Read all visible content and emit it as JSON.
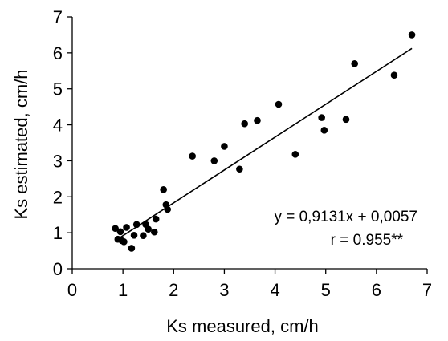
{
  "chart_data": {
    "type": "scatter",
    "title": "",
    "xlabel": "Ks measured, cm/h",
    "ylabel": "Ks estimated, cm/h",
    "xlim": [
      0,
      7
    ],
    "ylim": [
      0,
      7
    ],
    "xticks": [
      "0",
      "1",
      "2",
      "3",
      "4",
      "5",
      "6",
      "7"
    ],
    "yticks": [
      "0",
      "1",
      "2",
      "3",
      "4",
      "5",
      "6",
      "7"
    ],
    "grid": false,
    "legend": "none",
    "colors": {
      "points": "#000000",
      "line": "#000000",
      "axes": "#000000"
    },
    "points": [
      {
        "x": 0.85,
        "y": 1.12
      },
      {
        "x": 0.9,
        "y": 0.82
      },
      {
        "x": 0.95,
        "y": 1.03
      },
      {
        "x": 0.98,
        "y": 0.78
      },
      {
        "x": 1.02,
        "y": 0.75
      },
      {
        "x": 1.07,
        "y": 1.15
      },
      {
        "x": 1.17,
        "y": 0.57
      },
      {
        "x": 1.22,
        "y": 0.93
      },
      {
        "x": 1.27,
        "y": 1.23
      },
      {
        "x": 1.4,
        "y": 0.92
      },
      {
        "x": 1.45,
        "y": 1.23
      },
      {
        "x": 1.5,
        "y": 1.1
      },
      {
        "x": 1.62,
        "y": 1.02
      },
      {
        "x": 1.65,
        "y": 1.38
      },
      {
        "x": 1.8,
        "y": 2.2
      },
      {
        "x": 1.85,
        "y": 1.78
      },
      {
        "x": 1.88,
        "y": 1.65
      },
      {
        "x": 2.37,
        "y": 3.13
      },
      {
        "x": 2.8,
        "y": 3.0
      },
      {
        "x": 3.0,
        "y": 3.4
      },
      {
        "x": 3.3,
        "y": 2.77
      },
      {
        "x": 3.4,
        "y": 4.03
      },
      {
        "x": 3.65,
        "y": 4.12
      },
      {
        "x": 4.07,
        "y": 4.57
      },
      {
        "x": 4.4,
        "y": 3.18
      },
      {
        "x": 4.92,
        "y": 4.2
      },
      {
        "x": 4.97,
        "y": 3.85
      },
      {
        "x": 5.4,
        "y": 4.15
      },
      {
        "x": 5.57,
        "y": 5.7
      },
      {
        "x": 6.35,
        "y": 5.38
      },
      {
        "x": 6.7,
        "y": 6.5
      }
    ],
    "regression": {
      "slope": 0.9131,
      "intercept": 0.0057,
      "x_range": [
        0.85,
        6.7
      ]
    },
    "annotations": {
      "equation": "y = 0,9131x + 0,0057",
      "correlation": "r = 0.955**"
    }
  }
}
